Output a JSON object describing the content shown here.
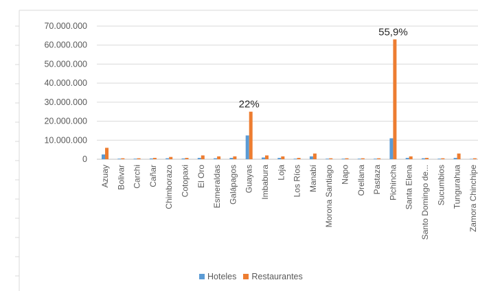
{
  "chart_data": {
    "type": "bar",
    "title": "",
    "xlabel": "",
    "ylabel": "",
    "ylim": [
      0,
      70000000
    ],
    "y_ticks": [
      "70.000.000",
      "60.000.000",
      "50.000.000",
      "40.000.000",
      "30.000.000",
      "20.000.000",
      "10.000.000",
      "0"
    ],
    "y_tick_values": [
      70000000,
      60000000,
      50000000,
      40000000,
      30000000,
      20000000,
      10000000,
      0
    ],
    "grid": true,
    "legend_position": "bottom",
    "categories": [
      "Azuay",
      "Bolivar",
      "Carchi",
      "Cañar",
      "Chimborazo",
      "Cotopaxi",
      "El Oro",
      "Esmeraldas",
      "Galápagos",
      "Guayas",
      "Imbabura",
      "Loja",
      "Los Ríos",
      "Manabí",
      "Morona Santiago",
      "Napo",
      "Orellana",
      "Pastaza",
      "Pichincha",
      "Santa Elena",
      "Santo Domingo de...",
      "Sucumbios",
      "Tungurahua",
      "Zamora Chinchipe"
    ],
    "series": [
      {
        "name": "Hoteles",
        "color": "#5B9BD5",
        "values": [
          2500000,
          300000,
          300000,
          400000,
          500000,
          400000,
          700000,
          500000,
          700000,
          12500000,
          900000,
          700000,
          300000,
          1500000,
          300000,
          300000,
          300000,
          300000,
          11000000,
          700000,
          500000,
          300000,
          700000,
          200000
        ]
      },
      {
        "name": "Restaurantes",
        "color": "#ED7D31",
        "values": [
          6000000,
          500000,
          500000,
          700000,
          1200000,
          700000,
          2000000,
          1500000,
          1500000,
          25000000,
          2000000,
          1500000,
          700000,
          3000000,
          500000,
          500000,
          500000,
          500000,
          63000000,
          1500000,
          700000,
          500000,
          3000000,
          500000
        ]
      }
    ],
    "annotations": [
      {
        "text": "22%",
        "category": "Guayas"
      },
      {
        "text": "55,9%",
        "category": "Pichincha"
      }
    ]
  }
}
